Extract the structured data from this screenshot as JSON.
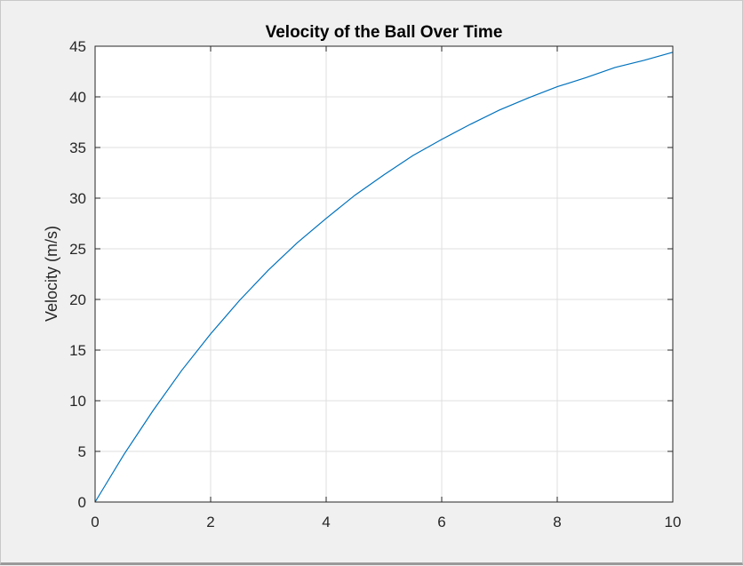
{
  "chart_data": {
    "type": "line",
    "title": "Velocity of the Ball Over Time",
    "xlabel": "",
    "ylabel": "Velocity (m/s)",
    "xlim": [
      0,
      10
    ],
    "ylim": [
      0,
      45
    ],
    "xticks": [
      "0",
      "2",
      "4",
      "6",
      "8",
      "10"
    ],
    "yticks": [
      "0",
      "5",
      "10",
      "15",
      "20",
      "25",
      "30",
      "35",
      "40",
      "45"
    ],
    "grid": true,
    "series": [
      {
        "color": "#0072bd",
        "x": [
          0,
          0.5,
          1,
          1.5,
          2,
          2.5,
          3,
          3.5,
          4,
          4.5,
          5,
          5.5,
          6,
          6.5,
          7,
          7.5,
          8,
          8.5,
          9,
          9.5,
          10
        ],
        "y": [
          0,
          4.7,
          9.0,
          13.0,
          16.6,
          19.9,
          22.9,
          25.6,
          28.0,
          30.3,
          32.3,
          34.2,
          35.8,
          37.3,
          38.7,
          39.9,
          41.0,
          41.9,
          42.9,
          43.6,
          44.4
        ]
      }
    ]
  }
}
